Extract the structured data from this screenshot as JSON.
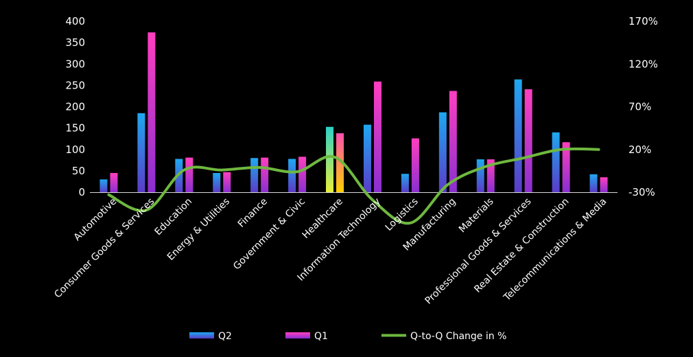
{
  "chart_data": {
    "type": "bar",
    "categories": [
      "Automotive",
      "Consumer Goods & Services",
      "Education",
      "Energy & Utilities",
      "Finance",
      "Government & Civic",
      "Healthcare",
      "Information Technology",
      "Logistics",
      "Manufacturing",
      "Materials",
      "Professional Goods & Services",
      "Real Estate & Construction",
      "Telecommunications & Media"
    ],
    "series": [
      {
        "name": "Q2",
        "type": "bar",
        "axis": "left",
        "values": [
          30,
          185,
          78,
          45,
          80,
          78,
          153,
          158,
          43,
          187,
          77,
          264,
          140,
          42
        ]
      },
      {
        "name": "Q1",
        "type": "bar",
        "axis": "left",
        "values": [
          45,
          374,
          81,
          47,
          81,
          83,
          138,
          259,
          126,
          237,
          77,
          241,
          117,
          35
        ]
      },
      {
        "name": "Q-to-Q Change in %",
        "type": "line",
        "axis": "right",
        "values": [
          -33,
          -51,
          -4,
          -4,
          -1,
          -6,
          11,
          -39,
          -66,
          -21,
          0,
          10,
          20,
          20
        ]
      }
    ],
    "y_left": {
      "min": 0,
      "max": 400,
      "ticks": [
        "0",
        "50",
        "100",
        "150",
        "200",
        "250",
        "300",
        "350",
        "400"
      ]
    },
    "y_right": {
      "min": -30,
      "max": 170,
      "ticks": [
        "-30%",
        "20%",
        "70%",
        "120%",
        "170%"
      ]
    },
    "legend_position": "bottom",
    "colors": {
      "q2": "#1ea8f0",
      "q2_base": "#5a3cc8",
      "q1": "#ff3fbf",
      "q1_base": "#8a2fd0",
      "line": "#6fb83f",
      "healthcare_q2": "#c8f03a",
      "healthcare_q1": "#ffb000"
    }
  }
}
